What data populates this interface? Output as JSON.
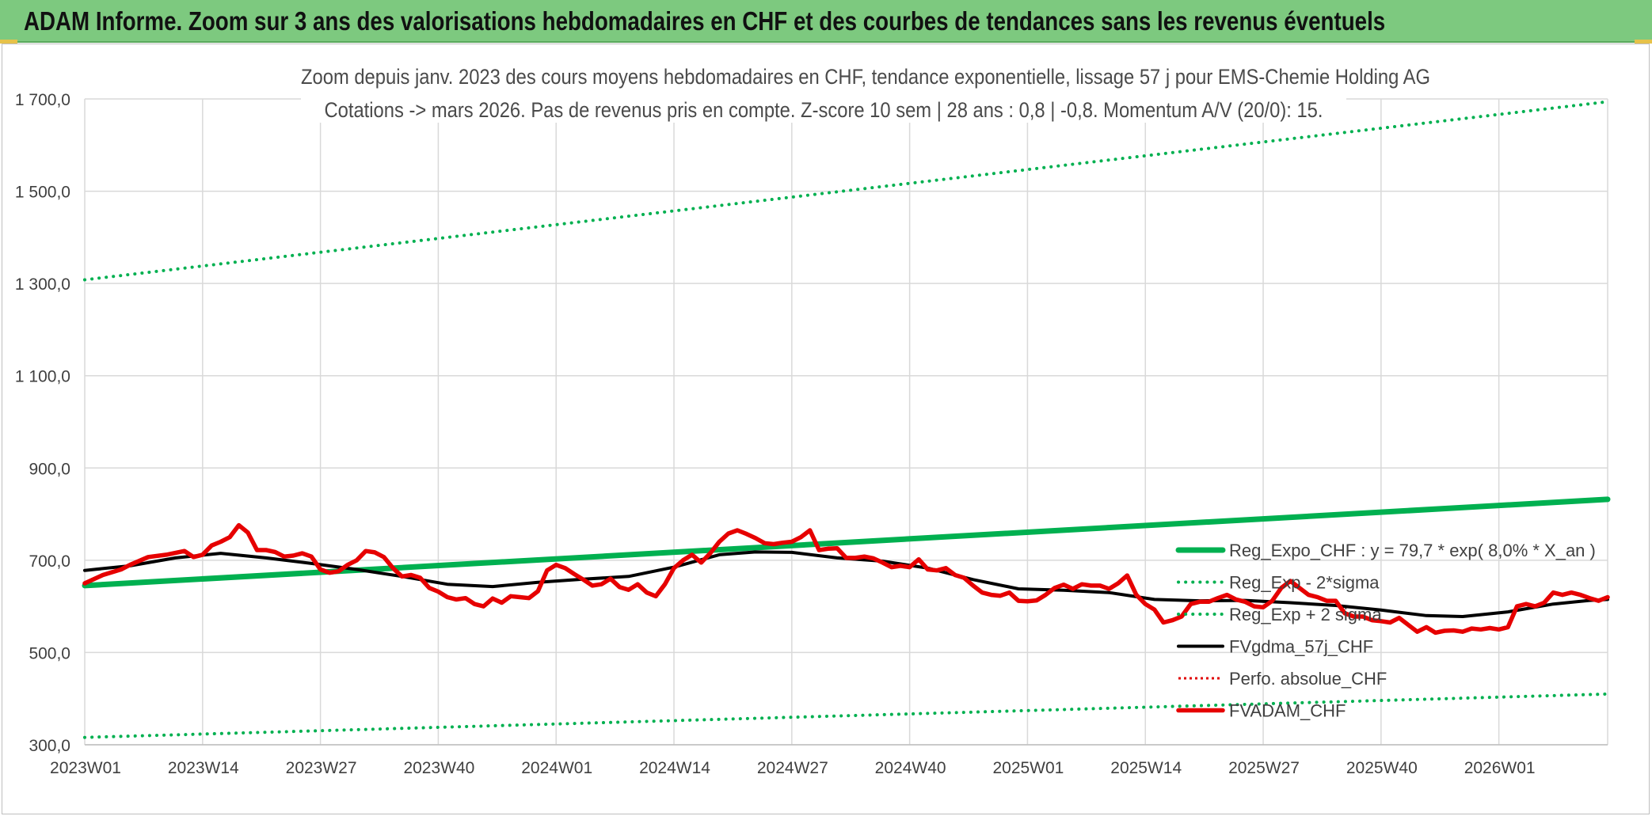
{
  "header": {
    "title": "ADAM Informe. Zoom sur 3 ans des valorisations hebdomadaires en CHF et des courbes de tendances sans les revenus éventuels"
  },
  "chart_data": {
    "type": "line",
    "title_line1": "Zoom depuis janv. 2023 des cours moyens hebdomadaires en CHF, tendance exponentielle, lissage 57 j pour EMS-Chemie Holding AG",
    "title_line2": "Cotations -> mars 2026. Pas de revenus pris en compte. Z-score 10 sem | 28 ans : 0,8 | -0,8. Momentum A/V (20/0): 15.",
    "xlabel": "",
    "ylabel": "",
    "ylim": [
      300,
      1700
    ],
    "y_ticks": [
      300,
      500,
      700,
      900,
      1100,
      1300,
      1500,
      1700
    ],
    "y_tick_labels": [
      "300,0",
      "500,0",
      "700,0",
      "900,0",
      "1 100,0",
      "1 300,0",
      "1 500,0",
      "1 700,0"
    ],
    "x_range_weeks": [
      0,
      168
    ],
    "x_ticks": [
      0,
      13,
      26,
      39,
      52,
      65,
      78,
      91,
      104,
      117,
      130,
      143,
      156
    ],
    "x_tick_labels": [
      "2023W01",
      "2023W14",
      "2023W27",
      "2023W40",
      "2024W01",
      "2024W14",
      "2024W27",
      "2024W40",
      "2025W01",
      "2025W14",
      "2025W27",
      "2025W40",
      "2026W01"
    ],
    "grid": true,
    "legend_position": "right",
    "colors": {
      "reg_expo": "#00b050",
      "sigma": "#00b050",
      "gdma": "#000000",
      "perfo": "#e00000",
      "fvadam": "#e60000",
      "grid": "#d9d9d9",
      "axis_text": "#404040"
    },
    "series": [
      {
        "name": "Reg_Expo_CHF : y = 79,7 * exp( 8,0% *  X_an )",
        "style": "solid-thick",
        "points": [
          [
            0,
            645
          ],
          [
            168,
            832
          ]
        ]
      },
      {
        "name": "Reg_Exp - 2*sigma",
        "style": "dotted",
        "points": [
          [
            0,
            316
          ],
          [
            168,
            410
          ]
        ]
      },
      {
        "name": "Reg_Exp + 2 sigma",
        "style": "dotted",
        "points": [
          [
            0,
            1308
          ],
          [
            168,
            1694
          ]
        ]
      },
      {
        "name": "FVgdma_57j_CHF",
        "style": "solid",
        "points": [
          [
            0,
            678
          ],
          [
            5,
            688
          ],
          [
            10,
            705
          ],
          [
            15,
            715
          ],
          [
            20,
            705
          ],
          [
            25,
            693
          ],
          [
            30,
            680
          ],
          [
            35,
            665
          ],
          [
            40,
            648
          ],
          [
            45,
            643
          ],
          [
            50,
            652
          ],
          [
            55,
            659
          ],
          [
            60,
            665
          ],
          [
            65,
            685
          ],
          [
            70,
            712
          ],
          [
            74,
            718
          ],
          [
            78,
            717
          ],
          [
            83,
            705
          ],
          [
            88,
            698
          ],
          [
            93,
            683
          ],
          [
            98,
            658
          ],
          [
            103,
            638
          ],
          [
            108,
            635
          ],
          [
            113,
            630
          ],
          [
            118,
            615
          ],
          [
            123,
            612
          ],
          [
            128,
            613
          ],
          [
            133,
            608
          ],
          [
            138,
            602
          ],
          [
            143,
            592
          ],
          [
            148,
            580
          ],
          [
            152,
            578
          ],
          [
            157,
            588
          ],
          [
            162,
            605
          ],
          [
            166,
            613
          ],
          [
            168,
            615
          ]
        ]
      },
      {
        "name": "Perfo. absolue_CHF",
        "style": "dotted",
        "points": []
      },
      {
        "name": "FVADAM_CHF",
        "style": "solid-thick",
        "points": [
          [
            0,
            650
          ],
          [
            2,
            668
          ],
          [
            4,
            680
          ],
          [
            5,
            690
          ],
          [
            7,
            707
          ],
          [
            9,
            712
          ],
          [
            11,
            720
          ],
          [
            12,
            707
          ],
          [
            13,
            712
          ],
          [
            14,
            732
          ],
          [
            15,
            740
          ],
          [
            16,
            750
          ],
          [
            17,
            776
          ],
          [
            18,
            760
          ],
          [
            19,
            722
          ],
          [
            20,
            722
          ],
          [
            21,
            718
          ],
          [
            22,
            708
          ],
          [
            23,
            710
          ],
          [
            24,
            715
          ],
          [
            25,
            708
          ],
          [
            26,
            680
          ],
          [
            27,
            673
          ],
          [
            28,
            676
          ],
          [
            29,
            690
          ],
          [
            30,
            700
          ],
          [
            31,
            720
          ],
          [
            32,
            717
          ],
          [
            33,
            707
          ],
          [
            34,
            683
          ],
          [
            35,
            665
          ],
          [
            36,
            668
          ],
          [
            37,
            662
          ],
          [
            38,
            640
          ],
          [
            39,
            632
          ],
          [
            40,
            620
          ],
          [
            41,
            615
          ],
          [
            42,
            618
          ],
          [
            43,
            605
          ],
          [
            44,
            600
          ],
          [
            45,
            617
          ],
          [
            46,
            608
          ],
          [
            47,
            622
          ],
          [
            48,
            620
          ],
          [
            49,
            618
          ],
          [
            50,
            633
          ],
          [
            51,
            678
          ],
          [
            52,
            690
          ],
          [
            53,
            683
          ],
          [
            54,
            670
          ],
          [
            55,
            658
          ],
          [
            56,
            645
          ],
          [
            57,
            648
          ],
          [
            58,
            660
          ],
          [
            59,
            642
          ],
          [
            60,
            636
          ],
          [
            61,
            648
          ],
          [
            62,
            630
          ],
          [
            63,
            622
          ],
          [
            64,
            648
          ],
          [
            65,
            683
          ],
          [
            66,
            700
          ],
          [
            67,
            712
          ],
          [
            68,
            695
          ],
          [
            69,
            715
          ],
          [
            70,
            740
          ],
          [
            71,
            758
          ],
          [
            72,
            765
          ],
          [
            73,
            757
          ],
          [
            74,
            748
          ],
          [
            75,
            737
          ],
          [
            76,
            735
          ],
          [
            77,
            738
          ],
          [
            78,
            740
          ],
          [
            79,
            750
          ],
          [
            80,
            765
          ],
          [
            81,
            722
          ],
          [
            82,
            725
          ],
          [
            83,
            726
          ],
          [
            84,
            705
          ],
          [
            85,
            705
          ],
          [
            86,
            708
          ],
          [
            87,
            704
          ],
          [
            88,
            695
          ],
          [
            89,
            685
          ],
          [
            90,
            688
          ],
          [
            91,
            685
          ],
          [
            92,
            702
          ],
          [
            93,
            680
          ],
          [
            94,
            678
          ],
          [
            95,
            683
          ],
          [
            96,
            668
          ],
          [
            97,
            662
          ],
          [
            98,
            645
          ],
          [
            99,
            630
          ],
          [
            100,
            625
          ],
          [
            101,
            623
          ],
          [
            102,
            630
          ],
          [
            103,
            612
          ],
          [
            104,
            611
          ],
          [
            105,
            613
          ],
          [
            106,
            625
          ],
          [
            107,
            640
          ],
          [
            108,
            647
          ],
          [
            109,
            638
          ],
          [
            110,
            648
          ],
          [
            111,
            645
          ],
          [
            112,
            645
          ],
          [
            113,
            638
          ],
          [
            114,
            650
          ],
          [
            115,
            667
          ],
          [
            116,
            625
          ],
          [
            117,
            605
          ],
          [
            118,
            593
          ],
          [
            119,
            565
          ],
          [
            120,
            570
          ],
          [
            121,
            578
          ],
          [
            122,
            605
          ],
          [
            123,
            610
          ],
          [
            124,
            610
          ],
          [
            125,
            618
          ],
          [
            126,
            625
          ],
          [
            127,
            615
          ],
          [
            128,
            610
          ],
          [
            129,
            600
          ],
          [
            130,
            598
          ],
          [
            131,
            612
          ],
          [
            132,
            640
          ],
          [
            133,
            655
          ],
          [
            134,
            640
          ],
          [
            135,
            625
          ],
          [
            136,
            620
          ],
          [
            137,
            612
          ],
          [
            138,
            612
          ],
          [
            139,
            585
          ],
          [
            140,
            578
          ],
          [
            141,
            578
          ],
          [
            142,
            570
          ],
          [
            143,
            568
          ],
          [
            144,
            565
          ],
          [
            145,
            575
          ],
          [
            146,
            560
          ],
          [
            147,
            545
          ],
          [
            148,
            555
          ],
          [
            149,
            543
          ],
          [
            150,
            547
          ],
          [
            151,
            548
          ],
          [
            152,
            545
          ],
          [
            153,
            552
          ],
          [
            154,
            550
          ],
          [
            155,
            553
          ],
          [
            156,
            550
          ],
          [
            157,
            555
          ],
          [
            158,
            600
          ],
          [
            159,
            605
          ],
          [
            160,
            600
          ],
          [
            161,
            608
          ],
          [
            162,
            630
          ],
          [
            163,
            625
          ],
          [
            164,
            630
          ],
          [
            165,
            625
          ],
          [
            166,
            618
          ],
          [
            167,
            612
          ],
          [
            168,
            620
          ]
        ]
      }
    ]
  }
}
